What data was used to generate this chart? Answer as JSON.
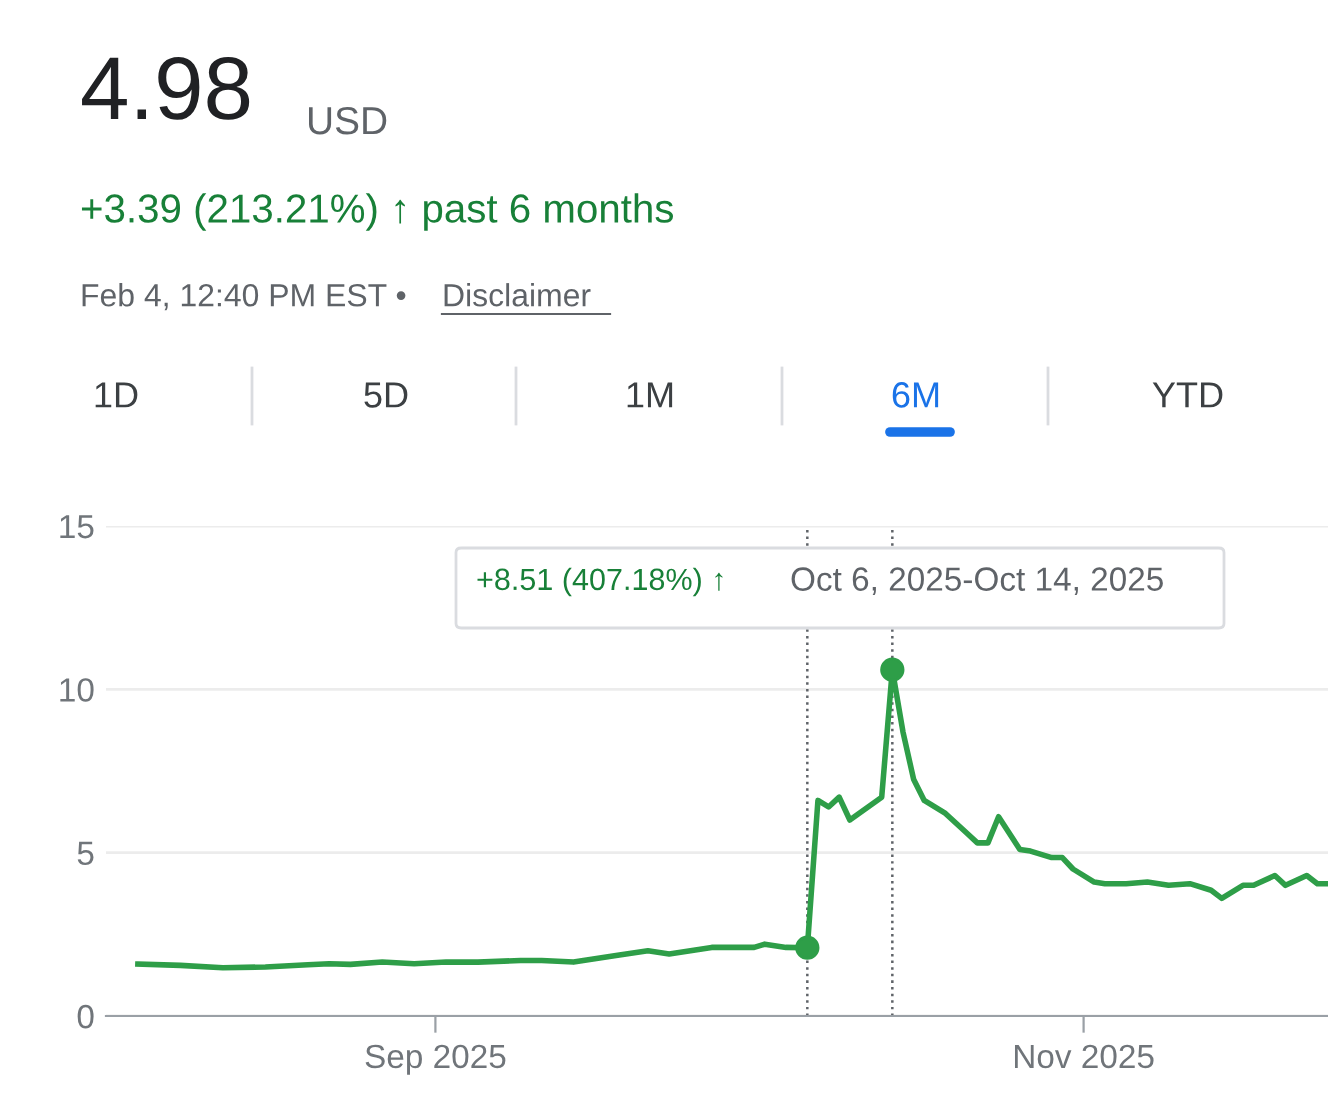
{
  "chart_data": {
    "type": "line",
    "title": "4.98",
    "subtitle": "+3.39 (213.21%) ↑ past 6 months",
    "annotations": [
      "USD",
      "Feb 4, 12:40 PM EST •",
      "Disclaimer",
      "1D",
      "5D",
      "1M",
      "6M",
      "YTD",
      "+8.51 (407.18%) ↑",
      "Oct 6, 2025-Oct 14, 2025"
    ],
    "series": [
      {
        "color": "#2e9e48",
        "x": [
          "2025-08-04",
          "2025-08-08",
          "2025-08-12",
          "2025-08-16",
          "2025-08-20",
          "2025-08-22",
          "2025-08-24",
          "2025-08-27",
          "2025-08-30",
          "2025-09-02",
          "2025-09-05",
          "2025-09-09",
          "2025-09-11",
          "2025-09-14",
          "2025-09-18",
          "2025-09-21",
          "2025-09-23",
          "2025-09-27",
          "2025-10-01",
          "2025-10-02",
          "2025-10-04",
          "2025-10-06",
          "2025-10-07",
          "2025-10-08",
          "2025-10-09",
          "2025-10-10",
          "2025-10-13",
          "2025-10-14",
          "2025-10-15",
          "2025-10-16",
          "2025-10-17",
          "2025-10-19",
          "2025-10-21",
          "2025-10-22",
          "2025-10-23",
          "2025-10-24",
          "2025-10-26",
          "2025-10-27",
          "2025-10-29",
          "2025-10-30",
          "2025-10-31",
          "2025-11-02",
          "2025-11-03",
          "2025-11-05",
          "2025-11-07",
          "2025-11-09",
          "2025-11-11",
          "2025-11-13",
          "2025-11-14",
          "2025-11-16",
          "2025-11-17",
          "2025-11-19",
          "2025-11-20",
          "2025-11-22",
          "2025-11-23",
          "2025-11-24"
        ],
        "values": [
          1.59,
          1.55,
          1.48,
          1.5,
          1.57,
          1.6,
          1.58,
          1.65,
          1.6,
          1.65,
          1.65,
          1.7,
          1.7,
          1.65,
          1.85,
          2.0,
          1.9,
          2.1,
          2.1,
          2.2,
          2.1,
          2.09,
          6.6,
          6.4,
          6.7,
          6.0,
          6.7,
          10.6,
          8.7,
          7.25,
          6.6,
          6.2,
          5.6,
          5.3,
          5.3,
          6.1,
          5.1,
          5.05,
          4.85,
          4.85,
          4.5,
          4.1,
          4.05,
          4.05,
          4.1,
          4.0,
          4.05,
          3.85,
          3.6,
          4.0,
          4.0,
          4.3,
          4.0,
          4.3,
          4.05,
          4.05
        ]
      },
      {
        "type": "scatter",
        "color": "#2e9e48",
        "marker": "circle",
        "x": [
          "2025-10-06",
          "2025-10-14"
        ],
        "values": [
          2.09,
          10.6
        ]
      }
    ],
    "ref_lines": [
      {
        "axis": "x",
        "value": "2025-10-06",
        "color": "#5f6368",
        "line_style": "dotted"
      },
      {
        "axis": "x",
        "value": "2025-10-14",
        "color": "#5f6368",
        "line_style": "dotted"
      }
    ],
    "xlim": [
      "2025-08-01",
      "2025-11-24"
    ],
    "xticks": [
      {
        "value": "2025-09-01",
        "label": "Sep 2025"
      },
      {
        "value": "2025-11-01",
        "label": "Nov 2025"
      }
    ],
    "ylim": [
      0,
      15
    ],
    "yticks": [
      0,
      5,
      10,
      15
    ],
    "grid": "y",
    "marker": "none",
    "line_style": "solid"
  }
}
